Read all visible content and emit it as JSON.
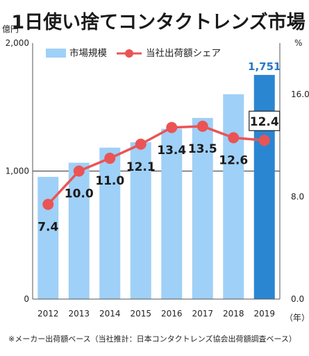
{
  "chart_data": {
    "type": "bar+line",
    "title": "1日使い捨てコンタクトレンズ市場",
    "y_left_unit": "億円",
    "y_right_unit": "%",
    "x_unit": "（年）",
    "categories": [
      "2012",
      "2013",
      "2014",
      "2015",
      "2016",
      "2017",
      "2018",
      "2019"
    ],
    "y_left_ticks": [
      "2,000",
      "1,000",
      "0"
    ],
    "y_right_ticks": [
      "16.0",
      "8.0",
      "0.0"
    ],
    "ylim_left": [
      0,
      2000
    ],
    "ylim_right": [
      0,
      20
    ],
    "series": [
      {
        "name": "市場規模",
        "kind": "bar",
        "axis": "left",
        "values": [
          955,
          1065,
          1183,
          1225,
          1330,
          1415,
          1600,
          1751
        ],
        "color": "#9fd0f7",
        "highlight_last_color": "#2b86d2"
      },
      {
        "name": "当社出荷額シェア",
        "kind": "line",
        "axis": "right",
        "values": [
          7.4,
          10.0,
          11.0,
          12.1,
          13.4,
          13.5,
          12.6,
          12.4
        ],
        "labels": [
          "7.4",
          "10.0",
          "11.0",
          "12.1",
          "13.4",
          "13.5",
          "12.6",
          "12.4"
        ],
        "color": "#ea5455"
      }
    ],
    "bar_value_label": "1,751",
    "grid": "horizontal",
    "legend": "top-left"
  },
  "footnote": "※メーカー出荷額ベース（当社推計：日本コンタクトレンズ協会出荷額調査ベース）"
}
